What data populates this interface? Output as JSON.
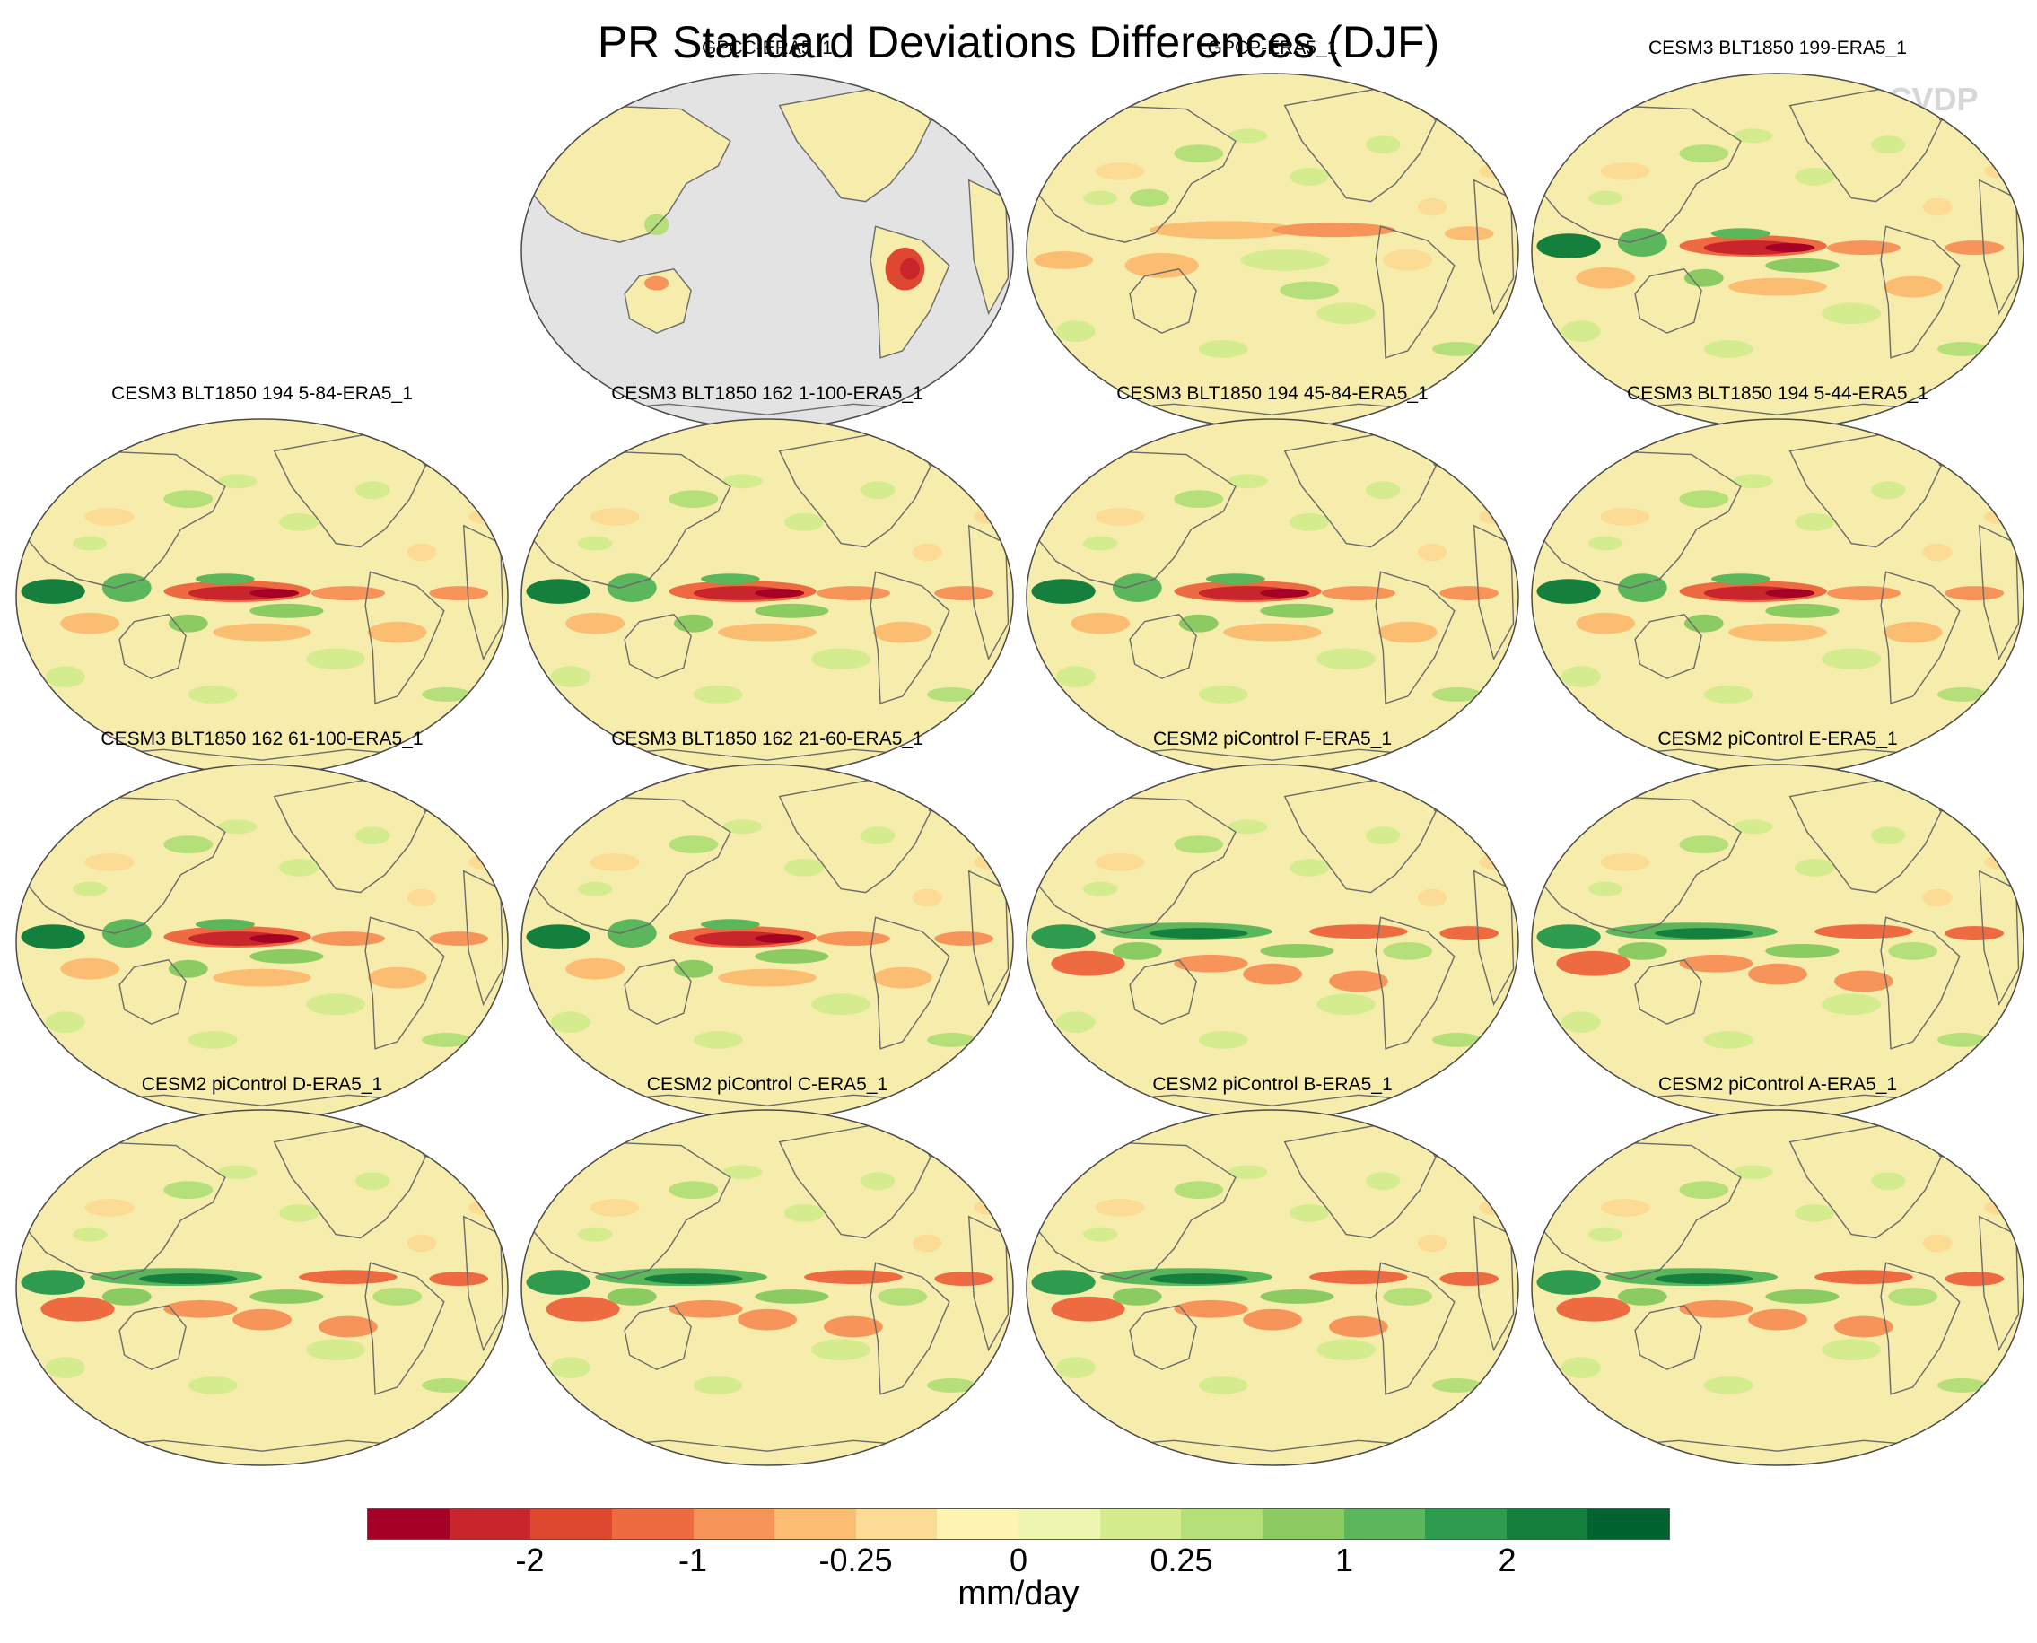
{
  "title": "PR Standard Deviations Differences (DJF)",
  "watermark": "© CVDP",
  "panels": [
    {
      "label": "GPCC-ERA5_1",
      "type": "land-only"
    },
    {
      "label": "GPCP-ERA5_1",
      "type": "obs"
    },
    {
      "label": "CESM3 BLT1850 199-ERA5_1",
      "type": "cesm3"
    },
    {
      "label": "CESM3 BLT1850 194 5-84-ERA5_1",
      "type": "cesm3"
    },
    {
      "label": "CESM3 BLT1850 162 1-100-ERA5_1",
      "type": "cesm3"
    },
    {
      "label": "CESM3 BLT1850 194 45-84-ERA5_1",
      "type": "cesm3"
    },
    {
      "label": "CESM3 BLT1850 194 5-44-ERA5_1",
      "type": "cesm3"
    },
    {
      "label": "CESM3 BLT1850 162 61-100-ERA5_1",
      "type": "cesm3"
    },
    {
      "label": "CESM3 BLT1850 162 21-60-ERA5_1",
      "type": "cesm3"
    },
    {
      "label": "CESM2 piControl F-ERA5_1",
      "type": "cesm2"
    },
    {
      "label": "CESM2 piControl E-ERA5_1",
      "type": "cesm2"
    },
    {
      "label": "CESM2 piControl D-ERA5_1",
      "type": "cesm2"
    },
    {
      "label": "CESM2 piControl C-ERA5_1",
      "type": "cesm2"
    },
    {
      "label": "CESM2 piControl B-ERA5_1",
      "type": "cesm2"
    },
    {
      "label": "CESM2 piControl A-ERA5_1",
      "type": "cesm2"
    }
  ],
  "colorbar": {
    "colors": [
      "#a50026",
      "#c8252c",
      "#de4830",
      "#ee6a40",
      "#f7945a",
      "#fbbd72",
      "#fcdc95",
      "#fef5b4",
      "#eef6b2",
      "#d4ec8e",
      "#b5df78",
      "#8ccb62",
      "#5cb65c",
      "#2e9b4e",
      "#15803e",
      "#006330"
    ],
    "ticks": [
      {
        "label": "-2",
        "boundary": 2
      },
      {
        "label": "-1",
        "boundary": 4
      },
      {
        "label": "-0.25",
        "boundary": 6
      },
      {
        "label": "0",
        "boundary": 8
      },
      {
        "label": "0.25",
        "boundary": 10
      },
      {
        "label": "1",
        "boundary": 12
      },
      {
        "label": "2",
        "boundary": 14
      }
    ],
    "unit": "mm/day"
  },
  "map_colors": {
    "base": "#f6ecab",
    "land_mask": "#e3e3e3",
    "coast": "#6a6a6a",
    "outline": "#4a4a4a"
  }
}
